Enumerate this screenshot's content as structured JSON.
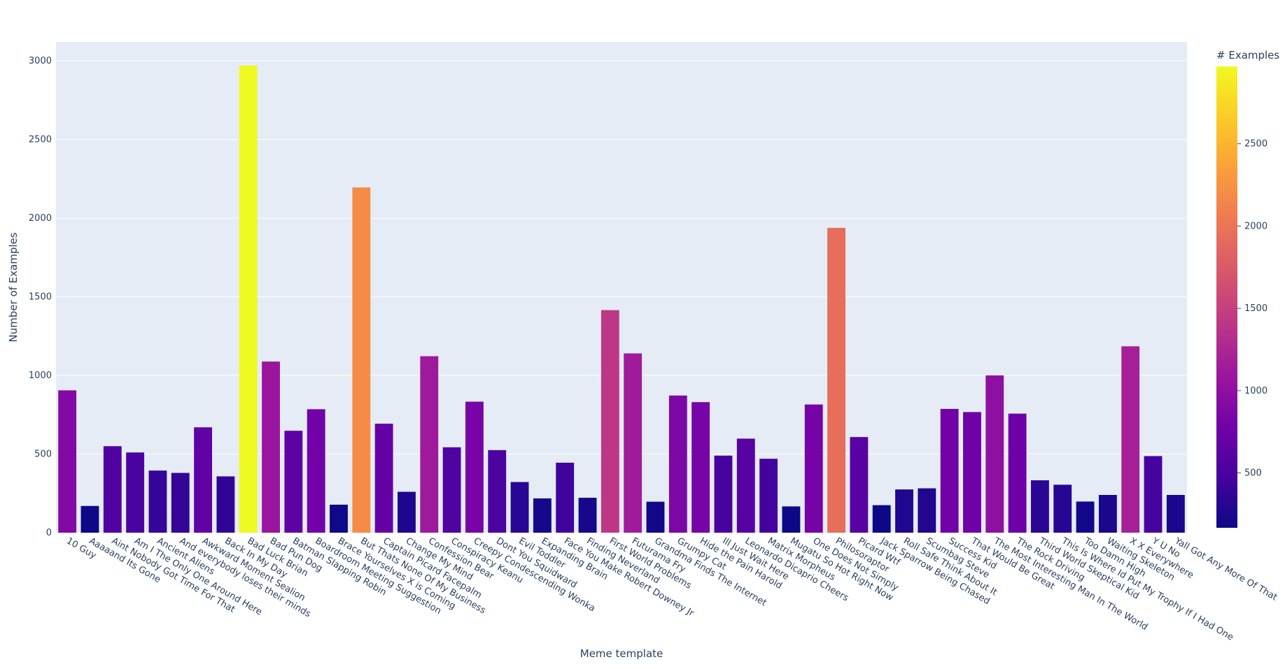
{
  "chart_data": {
    "type": "bar",
    "xlabel": "Meme template",
    "ylabel": "Number of Examples",
    "ylim": [
      0,
      3120
    ],
    "yticks": [
      0,
      500,
      1000,
      1500,
      2000,
      2500,
      3000
    ],
    "grid": true,
    "colorscale": "plasma",
    "colorbar": {
      "title": "# Examples",
      "range": [
        167,
        2970
      ],
      "ticks": [
        500,
        1000,
        1500,
        2000,
        2500
      ]
    },
    "categories": [
      "10 Guy",
      "Aaaaand Its Gone",
      "Aint Nobody Got Time For That",
      "Am I The Only One Around Here",
      "Ancient Aliens",
      "And everybody loses their minds",
      "Awkward Moment Sealion",
      "Back In My Day",
      "Bad Luck Brian",
      "Bad Pun Dog",
      "Batman Slapping Robin",
      "Boardroom Meeting Suggestion",
      "Brace Yourselves X is Coming",
      "But Thats None Of My Business",
      "Captain Picard Facepalm",
      "Change My Mind",
      "Confession Bear",
      "Conspiracy Keanu",
      "Creepy Condescending Wonka",
      "Dont You Squidward",
      "Evil Toddler",
      "Expanding Brain",
      "Face You Make Robert Downey Jr",
      "Finding Neverland",
      "First World Problems",
      "Futurama Fry",
      "Grandma Finds The Internet",
      "Grumpy Cat",
      "Hide the Pain Harold",
      "Ill Just Wait Here",
      "Leonardo Dicaprio Cheers",
      "Matrix Morpheus",
      "Mugatu So Hot Right Now",
      "One Does Not Simply",
      "Philosoraptor",
      "Picard Wtf",
      "Jack Sparrow Being Chased",
      "Roll Safe Think About It",
      "Scumbag Steve",
      "Success Kid",
      "That Would Be Great",
      "The Most Interesting Man In The World",
      "The Rock Driving",
      "Third World Skeptical Kid",
      "This Is Where Id Put My Trophy If I Had One",
      "Too Damn High",
      "Waiting Skeleton",
      "X X Everywhere",
      "Y U No",
      "Yall Got Any More Of That"
    ],
    "values": [
      905,
      170,
      550,
      510,
      395,
      380,
      670,
      358,
      2970,
      1088,
      648,
      785,
      178,
      2195,
      693,
      260,
      1122,
      543,
      833,
      525,
      322,
      218,
      445,
      222,
      1415,
      1140,
      197,
      872,
      830,
      490,
      598,
      470,
      167,
      815,
      1938,
      608,
      175,
      275,
      282,
      787,
      767,
      1000,
      757,
      333,
      305,
      198,
      240,
      1185,
      487,
      240
    ]
  }
}
